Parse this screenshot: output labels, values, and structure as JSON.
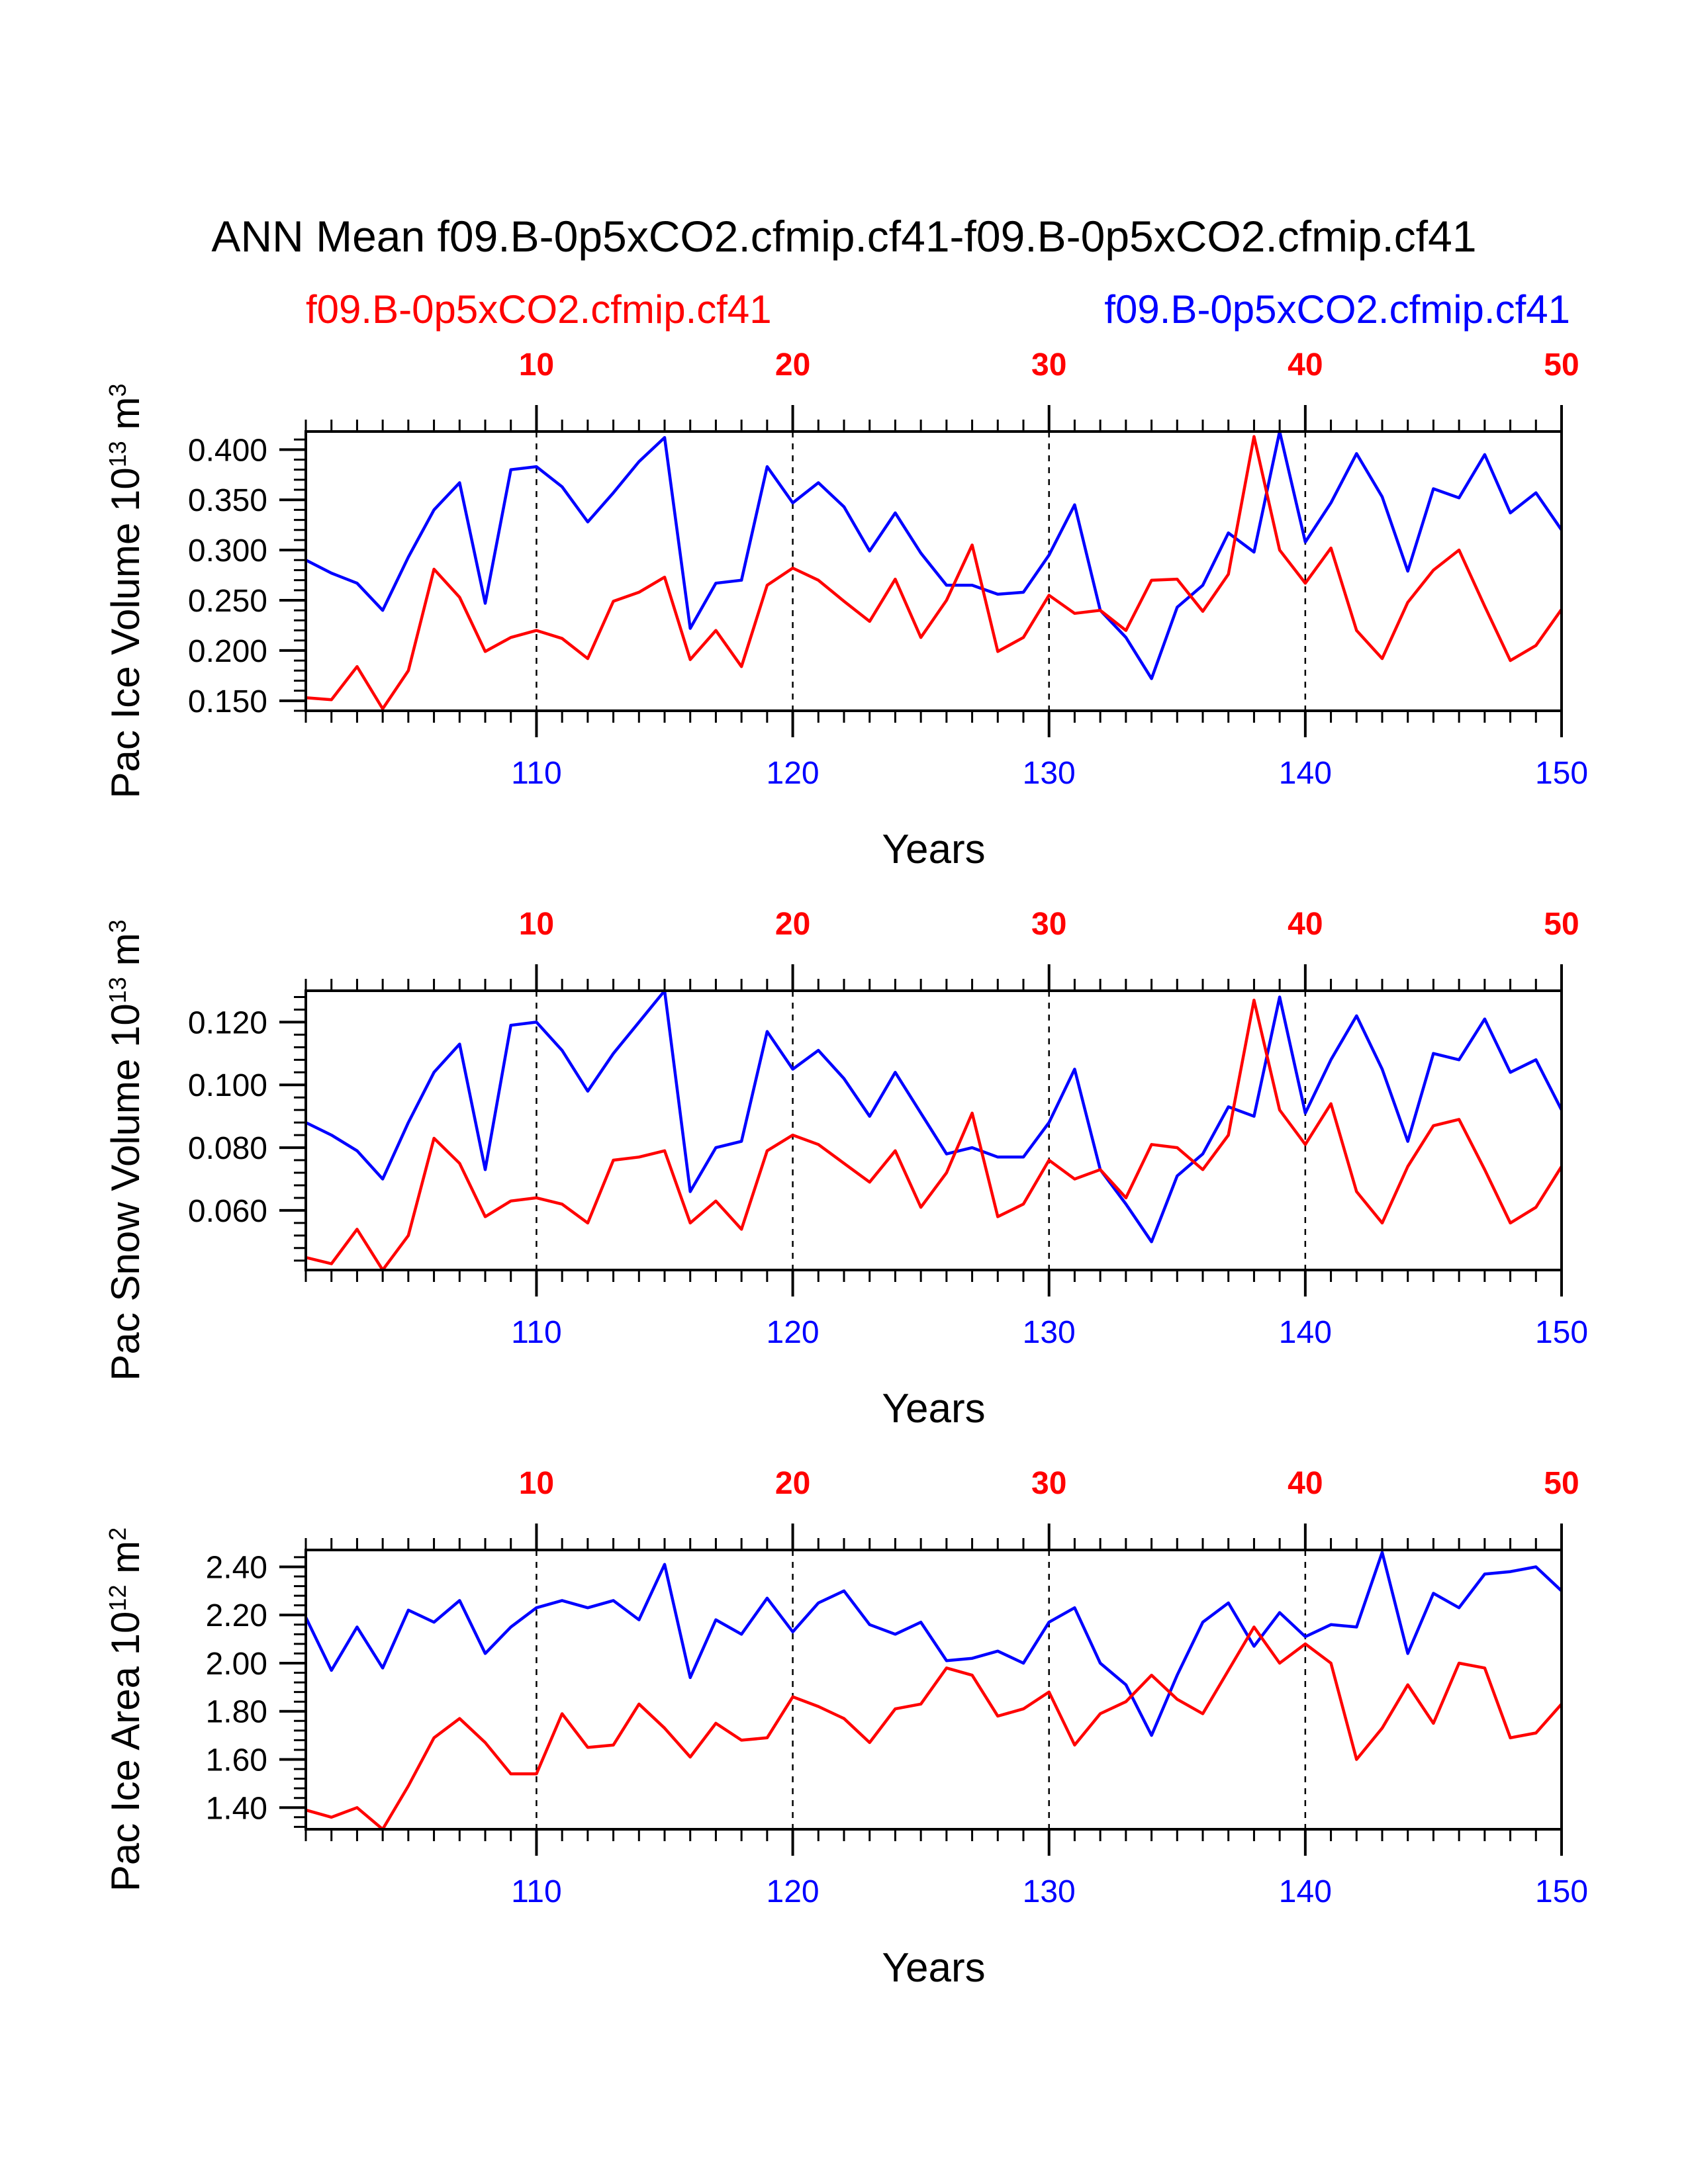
{
  "title": "ANN Mean f09.B-0p5xCO2.cfmip.cf41-f09.B-0p5xCO2.cfmip.cf41",
  "legend": {
    "red_label": "f09.B-0p5xCO2.cfmip.cf41",
    "blue_label": "f09.B-0p5xCO2.cfmip.cf41"
  },
  "colors": {
    "red": "#ff0000",
    "blue": "#0000ff",
    "axis": "#000000"
  },
  "chart_data": [
    {
      "type": "line",
      "ylabel_main": "Pac Ice Volume 10",
      "ylabel_exp": "13",
      "ylabel_unit": " m",
      "ylabel_unit_exp": "3",
      "xlabel": "Years",
      "xlim": [
        101,
        150
      ],
      "top_xlim": [
        1,
        50
      ],
      "ylim": [
        0.14,
        0.418
      ],
      "yticks": [
        0.15,
        0.2,
        0.25,
        0.3,
        0.35,
        0.4
      ],
      "ytick_labels": [
        "0.150",
        "0.200",
        "0.250",
        "0.300",
        "0.350",
        "0.400"
      ],
      "yminor_step": 0.01,
      "bottom_ticks": [
        110,
        120,
        130,
        140,
        150
      ],
      "bottom_tick_labels": [
        "110",
        "120",
        "130",
        "140",
        "150"
      ],
      "top_ticks": [
        10,
        20,
        30,
        40,
        50
      ],
      "top_tick_labels": [
        "10",
        "20",
        "30",
        "40",
        "50"
      ],
      "series": [
        {
          "name": "f09.B-0p5xCO2.cfmip.cf41",
          "color": "blue",
          "values": [
            0.29,
            0.277,
            0.267,
            0.24,
            0.293,
            0.34,
            0.367,
            0.247,
            0.38,
            0.383,
            0.363,
            0.328,
            0.357,
            0.388,
            0.412,
            0.222,
            0.267,
            0.27,
            0.383,
            0.347,
            0.367,
            0.343,
            0.299,
            0.337,
            0.297,
            0.265,
            0.265,
            0.256,
            0.258,
            0.295,
            0.345,
            0.24,
            0.213,
            0.172,
            0.243,
            0.265,
            0.317,
            0.298,
            0.418,
            0.308,
            0.347,
            0.396,
            0.353,
            0.279,
            0.361,
            0.352,
            0.395,
            0.337,
            0.357,
            0.32
          ]
        },
        {
          "name": "f09.B-0p5xCO2.cfmip.cf41",
          "color": "red",
          "values": [
            0.153,
            0.151,
            0.184,
            0.142,
            0.18,
            0.281,
            0.253,
            0.199,
            0.213,
            0.22,
            0.212,
            0.192,
            0.249,
            0.258,
            0.273,
            0.191,
            0.22,
            0.184,
            0.265,
            0.282,
            0.27,
            0.249,
            0.229,
            0.271,
            0.213,
            0.25,
            0.305,
            0.199,
            0.213,
            0.255,
            0.237,
            0.24,
            0.22,
            0.27,
            0.271,
            0.239,
            0.276,
            0.413,
            0.3,
            0.267,
            0.302,
            0.22,
            0.192,
            0.248,
            0.28,
            0.3,
            0.244,
            0.19,
            0.205,
            0.241
          ]
        }
      ]
    },
    {
      "type": "line",
      "ylabel_main": "Pac Snow Volume 10",
      "ylabel_exp": "13",
      "ylabel_unit": " m",
      "ylabel_unit_exp": "3",
      "xlabel": "Years",
      "xlim": [
        101,
        150
      ],
      "top_xlim": [
        1,
        50
      ],
      "ylim": [
        0.041,
        0.13
      ],
      "yticks": [
        0.06,
        0.08,
        0.1,
        0.12
      ],
      "ytick_labels": [
        "0.060",
        "0.080",
        "0.100",
        "0.120"
      ],
      "yminor_step": 0.004,
      "bottom_ticks": [
        110,
        120,
        130,
        140,
        150
      ],
      "bottom_tick_labels": [
        "110",
        "120",
        "130",
        "140",
        "150"
      ],
      "top_ticks": [
        10,
        20,
        30,
        40,
        50
      ],
      "top_tick_labels": [
        "10",
        "20",
        "30",
        "40",
        "50"
      ],
      "series": [
        {
          "name": "f09.B-0p5xCO2.cfmip.cf41",
          "color": "blue",
          "values": [
            0.088,
            0.084,
            0.079,
            0.07,
            0.088,
            0.104,
            0.113,
            0.073,
            0.119,
            0.12,
            0.111,
            0.098,
            0.11,
            0.12,
            0.13,
            0.066,
            0.08,
            0.082,
            0.117,
            0.105,
            0.111,
            0.102,
            0.09,
            0.104,
            0.091,
            0.078,
            0.08,
            0.077,
            0.077,
            0.088,
            0.105,
            0.073,
            0.062,
            0.05,
            0.071,
            0.078,
            0.093,
            0.09,
            0.128,
            0.091,
            0.108,
            0.122,
            0.105,
            0.082,
            0.11,
            0.108,
            0.121,
            0.104,
            0.108,
            0.092
          ]
        },
        {
          "name": "f09.B-0p5xCO2.cfmip.cf41",
          "color": "red",
          "values": [
            0.045,
            0.043,
            0.054,
            0.041,
            0.052,
            0.083,
            0.075,
            0.058,
            0.063,
            0.064,
            0.062,
            0.056,
            0.076,
            0.077,
            0.079,
            0.056,
            0.063,
            0.054,
            0.079,
            0.084,
            0.081,
            0.075,
            0.069,
            0.079,
            0.061,
            0.072,
            0.091,
            0.058,
            0.062,
            0.076,
            0.07,
            0.073,
            0.064,
            0.081,
            0.08,
            0.073,
            0.084,
            0.127,
            0.092,
            0.081,
            0.094,
            0.066,
            0.056,
            0.074,
            0.087,
            0.089,
            0.073,
            0.056,
            0.061,
            0.074
          ]
        }
      ]
    },
    {
      "type": "line",
      "ylabel_main": "Pac Ice Area 10",
      "ylabel_exp": "12",
      "ylabel_unit": " m",
      "ylabel_unit_exp": "2",
      "xlabel": "Years",
      "xlim": [
        101,
        150
      ],
      "top_xlim": [
        1,
        50
      ],
      "ylim": [
        1.31,
        2.47
      ],
      "yticks": [
        1.4,
        1.6,
        1.8,
        2.0,
        2.2,
        2.4
      ],
      "ytick_labels": [
        "1.40",
        "1.60",
        "1.80",
        "2.00",
        "2.20",
        "2.40"
      ],
      "yminor_step": 0.04,
      "bottom_ticks": [
        110,
        120,
        130,
        140,
        150
      ],
      "bottom_tick_labels": [
        "110",
        "120",
        "130",
        "140",
        "150"
      ],
      "top_ticks": [
        10,
        20,
        30,
        40,
        50
      ],
      "top_tick_labels": [
        "10",
        "20",
        "30",
        "40",
        "50"
      ],
      "series": [
        {
          "name": "f09.B-0p5xCO2.cfmip.cf41",
          "color": "blue",
          "values": [
            2.19,
            1.97,
            2.15,
            1.98,
            2.22,
            2.17,
            2.26,
            2.04,
            2.15,
            2.23,
            2.26,
            2.23,
            2.26,
            2.18,
            2.41,
            1.94,
            2.18,
            2.12,
            2.27,
            2.13,
            2.25,
            2.3,
            2.16,
            2.12,
            2.17,
            2.01,
            2.02,
            2.05,
            2.0,
            2.17,
            2.23,
            2.0,
            1.91,
            1.7,
            1.95,
            2.17,
            2.25,
            2.07,
            2.21,
            2.11,
            2.16,
            2.15,
            2.46,
            2.04,
            2.29,
            2.23,
            2.37,
            2.38,
            2.4,
            2.3
          ]
        },
        {
          "name": "f09.B-0p5xCO2.cfmip.cf41",
          "color": "red",
          "values": [
            1.39,
            1.36,
            1.4,
            1.31,
            1.49,
            1.69,
            1.77,
            1.67,
            1.54,
            1.54,
            1.79,
            1.65,
            1.66,
            1.83,
            1.73,
            1.61,
            1.75,
            1.68,
            1.69,
            1.86,
            1.82,
            1.77,
            1.67,
            1.81,
            1.83,
            1.98,
            1.95,
            1.78,
            1.81,
            1.88,
            1.66,
            1.79,
            1.84,
            1.95,
            1.85,
            1.79,
            1.97,
            2.15,
            2.0,
            2.08,
            2.0,
            1.6,
            1.73,
            1.91,
            1.75,
            2.0,
            1.98,
            1.69,
            1.71,
            1.83
          ]
        }
      ]
    }
  ]
}
